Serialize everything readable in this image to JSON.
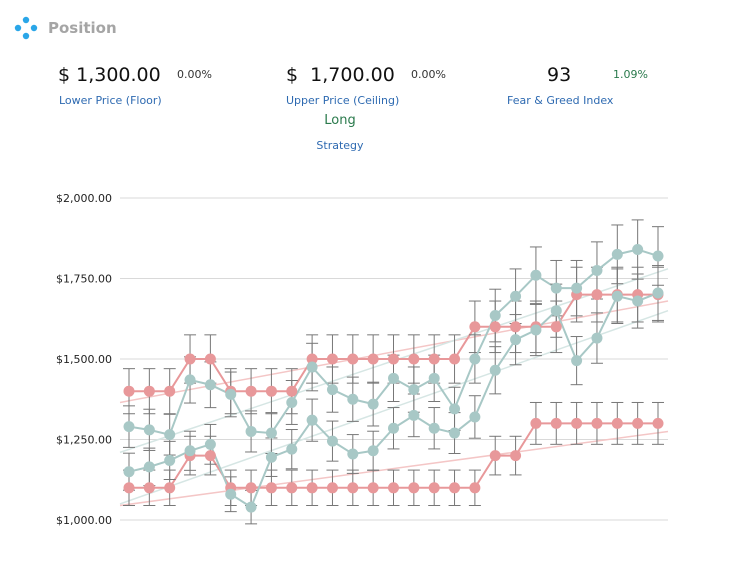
{
  "header": {
    "title": "Position",
    "icon": "diamond-dots-icon",
    "icon_color": "#2aa6e8"
  },
  "stats": {
    "floor": {
      "value": "$ 1,300.00",
      "pct": "0.00%",
      "label": "Lower Price (Floor)"
    },
    "ceiling": {
      "value": "$  1,700.00",
      "pct": "0.00%",
      "label": "Upper Price (Ceiling)"
    },
    "fear_greed": {
      "value": "93",
      "pct": "1.09%",
      "label": "Fear & Greed Index"
    }
  },
  "strategy": {
    "value": "Long",
    "label": "Strategy"
  },
  "colors": {
    "label_blue": "#2e6ab1",
    "positive_green": "#2a7a4c",
    "series_red": "#e8989a",
    "series_teal": "#a8c8c6",
    "error_bar": "#777777"
  },
  "chart_data": {
    "type": "line",
    "x": [
      1,
      2,
      3,
      4,
      5,
      6,
      7,
      8,
      9,
      10,
      11,
      12,
      13,
      14,
      15,
      16,
      17,
      18,
      19,
      20,
      21,
      22,
      23,
      24,
      25,
      26,
      27
    ],
    "ylim": [
      1000,
      2000
    ],
    "yticks": [
      "$1,000.00",
      "$1,250.00",
      "$1,500.00",
      "$1,750.00",
      "$2,000.00"
    ],
    "ytick_values": [
      1000,
      1250,
      1500,
      1750,
      2000
    ],
    "grid": true,
    "error_bar_pct": 0.05,
    "series": [
      {
        "color": "#e8989a",
        "values": [
          1400,
          1400,
          1400,
          1500,
          1500,
          1400,
          1400,
          1400,
          1400,
          1500,
          1500,
          1500,
          1500,
          1500,
          1500,
          1500,
          1500,
          1600,
          1600,
          1600,
          1600,
          1600,
          1700,
          1700,
          1700,
          1700,
          1700
        ]
      },
      {
        "color": "#e8989a",
        "values": [
          1100,
          1100,
          1100,
          1200,
          1200,
          1100,
          1100,
          1100,
          1100,
          1100,
          1100,
          1100,
          1100,
          1100,
          1100,
          1100,
          1100,
          1100,
          1200,
          1200,
          1300,
          1300,
          1300,
          1300,
          1300,
          1300,
          1300
        ]
      },
      {
        "color": "#a8c8c6",
        "values": [
          1290,
          1280,
          1265,
          1435,
          1420,
          1390,
          1275,
          1270,
          1365,
          1475,
          1405,
          1375,
          1360,
          1440,
          1405,
          1440,
          1345,
          1500,
          1635,
          1695,
          1760,
          1720,
          1720,
          1775,
          1825,
          1840,
          1820
        ]
      },
      {
        "color": "#a8c8c6",
        "values": [
          1150,
          1165,
          1185,
          1215,
          1235,
          1080,
          1040,
          1195,
          1220,
          1310,
          1245,
          1205,
          1215,
          1285,
          1325,
          1285,
          1270,
          1320,
          1465,
          1560,
          1590,
          1650,
          1495,
          1565,
          1695,
          1680,
          1705
        ]
      }
    ],
    "trendlines": [
      {
        "color": "#f4c6c6",
        "from": 1365,
        "to": 1680
      },
      {
        "color": "#f4c6c6",
        "from": 1045,
        "to": 1275
      },
      {
        "color": "#d6e6e4",
        "from": 1210,
        "to": 1780
      },
      {
        "color": "#d6e6e4",
        "from": 1050,
        "to": 1650
      }
    ]
  }
}
